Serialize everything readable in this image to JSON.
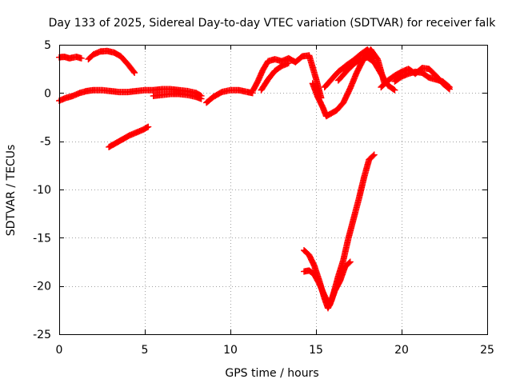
{
  "chart_data": {
    "type": "scatter",
    "title": "Day 133 of 2025, Sidereal Day-to-day VTEC variation (SDTVAR) for receiver falk",
    "xlabel": "GPS time / hours",
    "ylabel": "SDTVAR / TECUs",
    "xlim": [
      0,
      25
    ],
    "ylim": [
      -25,
      5
    ],
    "xticks": [
      0,
      5,
      10,
      15,
      20,
      25
    ],
    "yticks": [
      -25,
      -20,
      -15,
      -10,
      -5,
      0,
      5
    ],
    "grid": true,
    "marker": "plus",
    "colors": {
      "series": "#ff0000",
      "grid": "#a0a0a0",
      "axis": "#000000"
    },
    "series": [
      {
        "name": "segment-1",
        "x": [
          0.0,
          0.3,
          0.6,
          1.0,
          1.3
        ],
        "y": [
          3.7,
          3.75,
          3.6,
          3.75,
          3.6
        ]
      },
      {
        "name": "segment-2",
        "x": [
          1.7,
          2.0,
          2.4,
          2.8,
          3.2,
          3.6,
          4.0,
          4.4
        ],
        "y": [
          3.5,
          4.0,
          4.3,
          4.35,
          4.2,
          3.8,
          3.0,
          2.1
        ]
      },
      {
        "name": "segment-3",
        "x": [
          0.0,
          0.4,
          0.8,
          1.2,
          1.6,
          2.0,
          2.5,
          3.0,
          3.5,
          4.0,
          4.5,
          5.0,
          5.5,
          6.0,
          6.5,
          7.0,
          7.5,
          8.0,
          8.3
        ],
        "y": [
          -0.8,
          -0.5,
          -0.3,
          0.0,
          0.2,
          0.3,
          0.3,
          0.2,
          0.1,
          0.1,
          0.2,
          0.3,
          0.3,
          0.4,
          0.4,
          0.3,
          0.2,
          0.0,
          -0.3
        ]
      },
      {
        "name": "segment-4",
        "x": [
          5.5,
          6.0,
          6.5,
          7.0,
          7.5,
          8.0,
          8.3
        ],
        "y": [
          -0.3,
          -0.2,
          -0.1,
          -0.1,
          -0.2,
          -0.4,
          -0.6
        ]
      },
      {
        "name": "segment-5",
        "x": [
          2.9,
          3.3,
          3.7,
          4.1,
          4.5,
          4.9,
          5.2
        ],
        "y": [
          -5.6,
          -5.2,
          -4.8,
          -4.4,
          -4.1,
          -3.8,
          -3.5
        ]
      },
      {
        "name": "segment-6",
        "x": [
          8.6,
          9.0,
          9.5,
          10.0,
          10.5,
          11.0,
          11.3
        ],
        "y": [
          -1.0,
          -0.4,
          0.1,
          0.3,
          0.3,
          0.1,
          0.0
        ]
      },
      {
        "name": "segment-7",
        "x": [
          11.3,
          11.6,
          11.9,
          12.2,
          12.6,
          13.0,
          13.4,
          13.8,
          14.2,
          14.6,
          15.0,
          15.3
        ],
        "y": [
          0.2,
          1.2,
          2.4,
          3.3,
          3.5,
          3.3,
          3.6,
          3.2,
          3.8,
          3.9,
          1.5,
          -0.5
        ]
      },
      {
        "name": "segment-8",
        "x": [
          11.8,
          12.2,
          12.6,
          13.0,
          13.4
        ],
        "y": [
          0.3,
          1.4,
          2.3,
          2.8,
          3.1
        ]
      },
      {
        "name": "segment-9",
        "x": [
          14.8,
          15.1,
          15.4,
          15.6,
          15.9,
          16.2,
          16.6,
          17.0,
          17.4,
          17.8,
          18.2,
          18.6,
          19.0
        ],
        "y": [
          1.0,
          -0.4,
          -1.5,
          -2.4,
          -2.1,
          -1.8,
          -1.0,
          0.5,
          2.2,
          3.6,
          4.5,
          3.5,
          1.0
        ]
      },
      {
        "name": "segment-10",
        "x": [
          15.5,
          15.9,
          16.3,
          16.8,
          17.2,
          17.6,
          18.0,
          18.4
        ],
        "y": [
          0.6,
          1.4,
          2.2,
          2.9,
          3.4,
          4.0,
          4.5,
          3.6
        ]
      },
      {
        "name": "segment-11",
        "x": [
          16.3,
          16.8,
          17.2,
          17.6,
          18.0,
          18.4,
          18.8,
          19.2,
          19.6
        ],
        "y": [
          1.3,
          2.3,
          3.0,
          3.5,
          3.7,
          3.2,
          2.0,
          0.8,
          0.3
        ]
      },
      {
        "name": "segment-12",
        "x": [
          18.8,
          19.2,
          19.6,
          20.0,
          20.4,
          20.8,
          21.2,
          21.6,
          22.0,
          22.4,
          22.8
        ],
        "y": [
          0.6,
          1.3,
          1.8,
          2.2,
          2.5,
          2.0,
          2.6,
          2.5,
          1.8,
          1.0,
          0.4
        ]
      },
      {
        "name": "segment-13",
        "x": [
          19.6,
          20.0,
          20.4,
          20.8,
          21.2,
          21.6,
          22.0,
          22.4,
          22.8
        ],
        "y": [
          1.2,
          1.7,
          2.0,
          2.2,
          2.1,
          1.6,
          1.4,
          1.2,
          0.6
        ]
      },
      {
        "name": "segment-14",
        "x": [
          14.3,
          14.6,
          14.9,
          15.2,
          15.5,
          15.7,
          15.9,
          16.1,
          16.3,
          16.6,
          16.9,
          17.2,
          17.5,
          17.8,
          18.1,
          18.4
        ],
        "y": [
          -16.3,
          -16.8,
          -17.9,
          -19.5,
          -21.3,
          -22.3,
          -21.5,
          -20.3,
          -19.0,
          -17.3,
          -15.0,
          -13.0,
          -11.0,
          -8.8,
          -6.9,
          -6.4
        ]
      },
      {
        "name": "segment-15",
        "x": [
          14.3,
          14.6,
          14.9,
          15.2,
          15.5,
          15.8,
          16.1,
          16.4,
          16.7,
          17.0
        ],
        "y": [
          -18.5,
          -18.4,
          -18.8,
          -19.8,
          -21.0,
          -22.0,
          -20.5,
          -19.5,
          -18.0,
          -17.5
        ]
      }
    ]
  }
}
